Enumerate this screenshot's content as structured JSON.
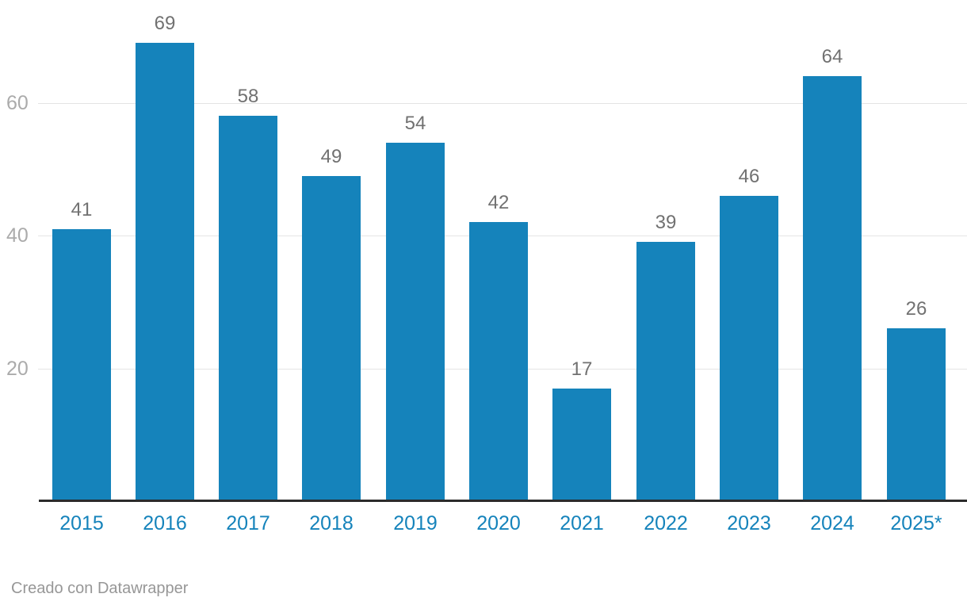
{
  "chart_data": {
    "type": "bar",
    "categories": [
      "2015",
      "2016",
      "2017",
      "2018",
      "2019",
      "2020",
      "2021",
      "2022",
      "2023",
      "2024",
      "2025*"
    ],
    "values": [
      41,
      69,
      58,
      49,
      54,
      42,
      17,
      39,
      46,
      64,
      26
    ],
    "title": "",
    "xlabel": "",
    "ylabel": "",
    "ylim": [
      0,
      75.5
    ],
    "yticks": [
      20,
      40,
      60
    ],
    "grid": "horizontal",
    "legend": "none",
    "bar_color": "#1583bb",
    "value_label_color": "#717171",
    "ytick_label_color": "#ababab",
    "xtick_label_color": "#1583bb",
    "gridline_color": "#e4e4e4",
    "baseline_color": "#2b2b2b"
  },
  "footer": {
    "credit": "Creado con Datawrapper"
  }
}
